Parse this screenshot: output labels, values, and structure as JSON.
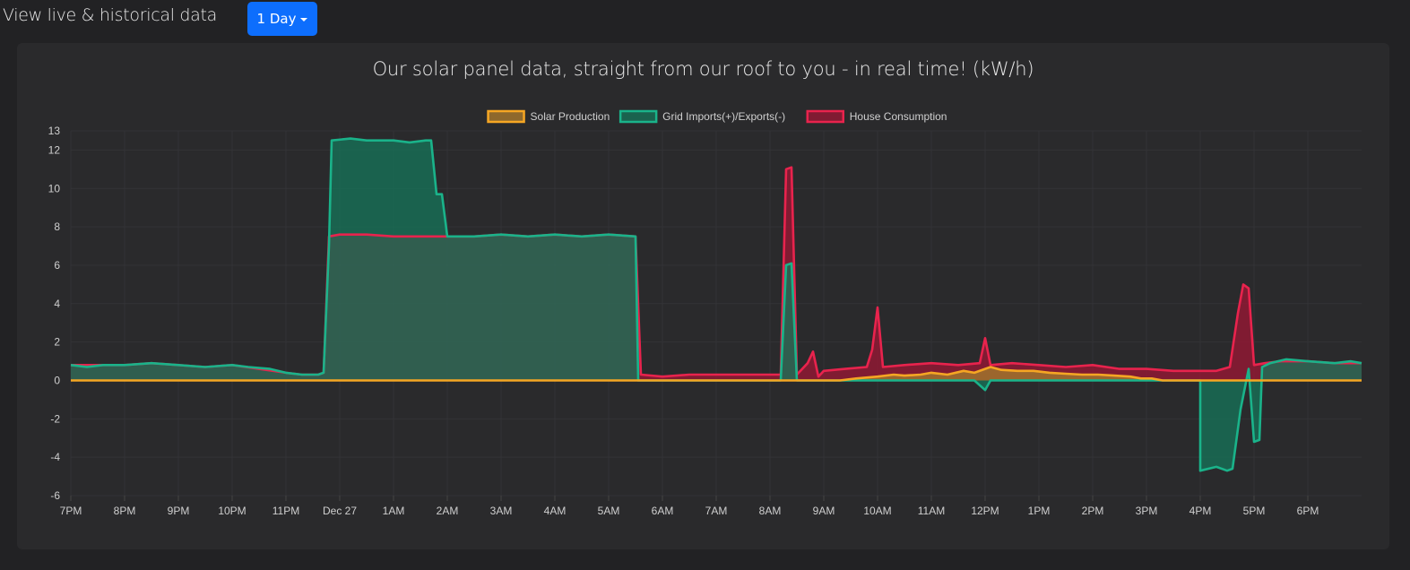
{
  "header": {
    "title": "View live & historical data",
    "range_label": "1 Day"
  },
  "chart_data": {
    "type": "area",
    "title": "Our solar panel data, straight from our roof to you - in real time! (kW/h)",
    "xlabel": "",
    "ylabel": "",
    "ylim": [
      -6,
      13
    ],
    "yticks": [
      -6,
      -4,
      -2,
      0,
      2,
      4,
      6,
      8,
      10,
      12,
      13
    ],
    "x_unit": "hours since 7PM Dec 26",
    "xlim": [
      0,
      24
    ],
    "xticks": [
      {
        "x": 0,
        "label": "7PM"
      },
      {
        "x": 1,
        "label": "8PM"
      },
      {
        "x": 2,
        "label": "9PM"
      },
      {
        "x": 3,
        "label": "10PM"
      },
      {
        "x": 4,
        "label": "11PM"
      },
      {
        "x": 5,
        "label": "Dec 27"
      },
      {
        "x": 6,
        "label": "1AM"
      },
      {
        "x": 7,
        "label": "2AM"
      },
      {
        "x": 8,
        "label": "3AM"
      },
      {
        "x": 9,
        "label": "4AM"
      },
      {
        "x": 10,
        "label": "5AM"
      },
      {
        "x": 11,
        "label": "6AM"
      },
      {
        "x": 12,
        "label": "7AM"
      },
      {
        "x": 13,
        "label": "8AM"
      },
      {
        "x": 14,
        "label": "9AM"
      },
      {
        "x": 15,
        "label": "10AM"
      },
      {
        "x": 16,
        "label": "11AM"
      },
      {
        "x": 17,
        "label": "12PM"
      },
      {
        "x": 18,
        "label": "1PM"
      },
      {
        "x": 19,
        "label": "2PM"
      },
      {
        "x": 20,
        "label": "3PM"
      },
      {
        "x": 21,
        "label": "4PM"
      },
      {
        "x": 22,
        "label": "5PM"
      },
      {
        "x": 23,
        "label": "6PM"
      }
    ],
    "legend_position": "top",
    "grid": true,
    "series": [
      {
        "name": "Solar Production",
        "color": "#f5a623",
        "fill": "rgba(160,115,45,0.85)",
        "points": [
          [
            0,
            0
          ],
          [
            14.3,
            0
          ],
          [
            14.6,
            0.1
          ],
          [
            15.0,
            0.2
          ],
          [
            15.3,
            0.3
          ],
          [
            15.5,
            0.25
          ],
          [
            15.8,
            0.3
          ],
          [
            16.0,
            0.4
          ],
          [
            16.3,
            0.3
          ],
          [
            16.6,
            0.5
          ],
          [
            16.8,
            0.4
          ],
          [
            17.0,
            0.6
          ],
          [
            17.1,
            0.7
          ],
          [
            17.3,
            0.55
          ],
          [
            17.6,
            0.5
          ],
          [
            17.9,
            0.5
          ],
          [
            18.2,
            0.4
          ],
          [
            18.5,
            0.35
          ],
          [
            18.8,
            0.3
          ],
          [
            19.1,
            0.3
          ],
          [
            19.4,
            0.25
          ],
          [
            19.7,
            0.2
          ],
          [
            19.9,
            0.1
          ],
          [
            20.1,
            0.1
          ],
          [
            20.3,
            0
          ],
          [
            24,
            0
          ]
        ]
      },
      {
        "name": "Grid Imports(+)/Exports(-)",
        "color": "#1ab38a",
        "fill": "rgba(22,118,90,0.75)",
        "points": [
          [
            0,
            0.8
          ],
          [
            0.3,
            0.7
          ],
          [
            0.6,
            0.8
          ],
          [
            1.0,
            0.8
          ],
          [
            1.5,
            0.9
          ],
          [
            2.0,
            0.8
          ],
          [
            2.5,
            0.7
          ],
          [
            3.0,
            0.8
          ],
          [
            3.3,
            0.7
          ],
          [
            3.7,
            0.6
          ],
          [
            4.0,
            0.4
          ],
          [
            4.3,
            0.3
          ],
          [
            4.6,
            0.3
          ],
          [
            4.7,
            0.4
          ],
          [
            4.8,
            7.0
          ],
          [
            4.85,
            12.5
          ],
          [
            5.2,
            12.6
          ],
          [
            5.5,
            12.5
          ],
          [
            6.0,
            12.5
          ],
          [
            6.3,
            12.4
          ],
          [
            6.6,
            12.5
          ],
          [
            6.7,
            12.5
          ],
          [
            6.8,
            9.7
          ],
          [
            6.9,
            9.7
          ],
          [
            7.0,
            7.5
          ],
          [
            7.5,
            7.5
          ],
          [
            8.0,
            7.6
          ],
          [
            8.5,
            7.5
          ],
          [
            9.0,
            7.6
          ],
          [
            9.5,
            7.5
          ],
          [
            10.0,
            7.6
          ],
          [
            10.5,
            7.5
          ],
          [
            10.55,
            0
          ],
          [
            13.2,
            0
          ],
          [
            13.3,
            6.0
          ],
          [
            13.4,
            6.1
          ],
          [
            13.5,
            0
          ],
          [
            16.8,
            0
          ],
          [
            17.0,
            -0.5
          ],
          [
            17.1,
            0
          ],
          [
            21.0,
            0
          ],
          [
            21.0,
            -4.7
          ],
          [
            21.3,
            -4.5
          ],
          [
            21.5,
            -4.7
          ],
          [
            21.6,
            -4.6
          ],
          [
            21.75,
            -1.5
          ],
          [
            21.9,
            0.6
          ],
          [
            22.0,
            -3.2
          ],
          [
            22.1,
            -3.1
          ],
          [
            22.15,
            0.7
          ],
          [
            22.3,
            0.9
          ],
          [
            22.6,
            1.1
          ],
          [
            23.0,
            1.0
          ],
          [
            23.5,
            0.9
          ],
          [
            23.8,
            1.0
          ],
          [
            24,
            0.9
          ]
        ]
      },
      {
        "name": "House Consumption",
        "color": "#e8234d",
        "fill": "rgba(150,24,52,0.8)",
        "points": [
          [
            0,
            0.8
          ],
          [
            0.5,
            0.8
          ],
          [
            1.0,
            0.8
          ],
          [
            1.5,
            0.9
          ],
          [
            2.0,
            0.8
          ],
          [
            2.5,
            0.7
          ],
          [
            3.0,
            0.8
          ],
          [
            3.5,
            0.6
          ],
          [
            4.0,
            0.4
          ],
          [
            4.3,
            0.3
          ],
          [
            4.6,
            0.3
          ],
          [
            4.7,
            0.4
          ],
          [
            4.8,
            7.5
          ],
          [
            5.0,
            7.6
          ],
          [
            5.5,
            7.6
          ],
          [
            6.0,
            7.5
          ],
          [
            6.5,
            7.5
          ],
          [
            7.0,
            7.5
          ],
          [
            7.5,
            7.5
          ],
          [
            8.0,
            7.6
          ],
          [
            8.5,
            7.5
          ],
          [
            9.0,
            7.6
          ],
          [
            9.5,
            7.5
          ],
          [
            10.0,
            7.6
          ],
          [
            10.5,
            7.5
          ],
          [
            10.6,
            0.3
          ],
          [
            11.0,
            0.2
          ],
          [
            11.5,
            0.3
          ],
          [
            12.0,
            0.3
          ],
          [
            12.5,
            0.3
          ],
          [
            13.0,
            0.3
          ],
          [
            13.2,
            0.3
          ],
          [
            13.3,
            11.0
          ],
          [
            13.4,
            11.1
          ],
          [
            13.5,
            0.3
          ],
          [
            13.7,
            0.9
          ],
          [
            13.8,
            1.5
          ],
          [
            13.9,
            0.2
          ],
          [
            14.0,
            0.5
          ],
          [
            14.4,
            0.6
          ],
          [
            14.8,
            0.7
          ],
          [
            14.9,
            1.6
          ],
          [
            15.0,
            3.8
          ],
          [
            15.1,
            0.7
          ],
          [
            15.5,
            0.8
          ],
          [
            16.0,
            0.9
          ],
          [
            16.5,
            0.8
          ],
          [
            16.9,
            0.9
          ],
          [
            17.0,
            2.2
          ],
          [
            17.1,
            0.8
          ],
          [
            17.5,
            0.9
          ],
          [
            18.0,
            0.8
          ],
          [
            18.5,
            0.7
          ],
          [
            19.0,
            0.8
          ],
          [
            19.5,
            0.6
          ],
          [
            20.0,
            0.6
          ],
          [
            20.5,
            0.5
          ],
          [
            21.0,
            0.5
          ],
          [
            21.3,
            0.5
          ],
          [
            21.55,
            0.7
          ],
          [
            21.7,
            3.5
          ],
          [
            21.8,
            5.0
          ],
          [
            21.9,
            4.8
          ],
          [
            22.0,
            0.8
          ],
          [
            22.2,
            0.9
          ],
          [
            22.5,
            1.0
          ],
          [
            23.0,
            1.0
          ],
          [
            23.5,
            0.9
          ],
          [
            24,
            0.9
          ]
        ]
      }
    ]
  }
}
